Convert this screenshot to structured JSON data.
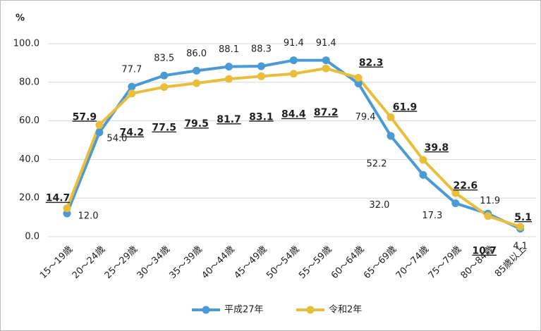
{
  "chart_data": {
    "type": "line",
    "y_unit": "%",
    "categories": [
      "15〜19歳",
      "20〜24歳",
      "25〜29歳",
      "30〜34歳",
      "35〜39歳",
      "40〜44歳",
      "45〜49歳",
      "50〜54歳",
      "55〜59歳",
      "60〜64歳",
      "65〜69歳",
      "70〜74歳",
      "75〜79歳",
      "80〜84歳",
      "85歳以上"
    ],
    "series": [
      {
        "name": "平成27年",
        "color": "#4a9ad6",
        "values": [
          12.0,
          54.0,
          77.7,
          83.5,
          86.0,
          88.1,
          88.3,
          91.4,
          91.4,
          79.4,
          52.2,
          32.0,
          17.3,
          11.9,
          4.1
        ],
        "value_labels": [
          "12.0",
          "54.0",
          "77.7",
          "83.5",
          "86.0",
          "88.1",
          "88.3",
          "91.4",
          "91.4",
          "79.4",
          "52.2",
          "32.0",
          "17.3",
          "11.9",
          "4.1"
        ]
      },
      {
        "name": "令和2年",
        "color": "#e9be3c",
        "values": [
          14.7,
          57.9,
          74.2,
          77.5,
          79.5,
          81.7,
          83.1,
          84.4,
          87.2,
          82.3,
          61.9,
          39.8,
          22.6,
          10.7,
          5.1
        ],
        "value_labels": [
          "14.7",
          "57.9",
          "74.2",
          "77.5",
          "79.5",
          "81.7",
          "83.1",
          "84.4",
          "87.2",
          "82.3",
          "61.9",
          "39.8",
          "22.6",
          "10.7",
          "5.1"
        ]
      }
    ],
    "ylim": [
      0,
      100
    ],
    "yticks": [
      {
        "value": 0,
        "label": "0.0"
      },
      {
        "value": 20,
        "label": "20.0"
      },
      {
        "value": 40,
        "label": "40.0"
      },
      {
        "value": 60,
        "label": "60.0"
      },
      {
        "value": 80,
        "label": "80.0"
      },
      {
        "value": 100,
        "label": "100.0"
      }
    ],
    "grid": true,
    "legend": "bottom"
  }
}
